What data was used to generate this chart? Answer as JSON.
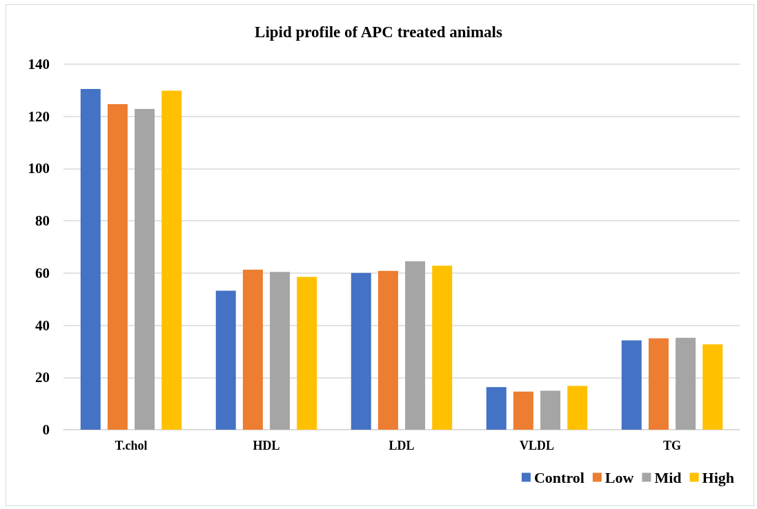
{
  "chart_data": {
    "type": "bar",
    "title": "Lipid profile of APC treated animals",
    "categories": [
      "T.chol",
      "HDL",
      "LDL",
      "VLDL",
      "TG"
    ],
    "series": [
      {
        "name": "Control",
        "color": "#4472c4",
        "values": [
          130.5,
          53.2,
          60.0,
          16.3,
          34.2
        ]
      },
      {
        "name": "Low",
        "color": "#ed7d31",
        "values": [
          124.7,
          61.3,
          60.8,
          14.6,
          35.0
        ]
      },
      {
        "name": "Mid",
        "color": "#a5a5a5",
        "values": [
          122.8,
          60.4,
          64.5,
          14.9,
          35.2
        ]
      },
      {
        "name": "High",
        "color": "#ffc000",
        "values": [
          129.8,
          58.5,
          62.8,
          16.8,
          32.7
        ]
      }
    ],
    "ylim": [
      0,
      140
    ],
    "yticks": [
      0,
      20,
      40,
      60,
      80,
      100,
      120,
      140
    ],
    "grid": "y",
    "legend": "bottom right"
  }
}
